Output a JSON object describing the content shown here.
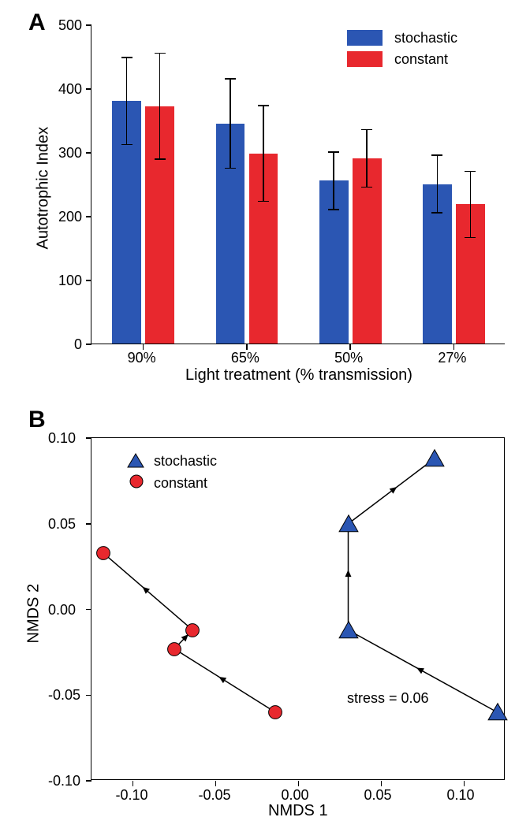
{
  "panelA": {
    "label": "A",
    "type": "bar",
    "categories": [
      "90%",
      "65%",
      "50%",
      "27%"
    ],
    "ylabel": "Autotrophic Index",
    "xlabel": "Light treatment (% transmission)",
    "ylim": [
      0,
      500
    ],
    "ytick_step": 100,
    "bar_width": 0.35,
    "series": [
      {
        "name": "stochastic",
        "color": "#2b56b3",
        "values": [
          380,
          345,
          255,
          250
        ],
        "error": [
          68,
          70,
          45,
          45
        ]
      },
      {
        "name": "constant",
        "color": "#e8282e",
        "values": [
          372,
          298,
          290,
          218
        ],
        "error": [
          83,
          75,
          45,
          52
        ]
      }
    ],
    "title_fontsize": 20,
    "tick_fontsize": 18,
    "label_fontsize": 20,
    "error_color": "#000000",
    "axis_color": "#000000"
  },
  "panelB": {
    "label": "B",
    "type": "scatter",
    "xlabel": "NMDS 1",
    "ylabel": "NMDS 2",
    "xlim": [
      -0.125,
      0.125
    ],
    "ylim": [
      -0.1,
      0.1
    ],
    "xticks": [
      -0.1,
      -0.05,
      0.0,
      0.05,
      0.1
    ],
    "yticks": [
      -0.1,
      -0.05,
      0.0,
      0.05,
      0.1
    ],
    "annotation": "stress = 0.06",
    "tick_fontsize": 18,
    "label_fontsize": 20,
    "axis_color": "#000000",
    "series": [
      {
        "name": "stochastic",
        "marker": "triangle",
        "color": "#2b56b3",
        "size": 14,
        "points": [
          {
            "x": 0.12,
            "y": -0.06
          },
          {
            "x": 0.03,
            "y": -0.012
          },
          {
            "x": 0.03,
            "y": 0.05
          },
          {
            "x": 0.082,
            "y": 0.088
          }
        ]
      },
      {
        "name": "constant",
        "marker": "circle",
        "color": "#e8282e",
        "size": 12,
        "points": [
          {
            "x": -0.014,
            "y": -0.06
          },
          {
            "x": -0.075,
            "y": -0.023
          },
          {
            "x": -0.064,
            "y": -0.012
          },
          {
            "x": -0.118,
            "y": 0.033
          }
        ]
      }
    ],
    "arrow_color": "#000000",
    "arrow_width": 1.5
  },
  "legend": {
    "stochastic": "stochastic",
    "constant": "constant"
  }
}
